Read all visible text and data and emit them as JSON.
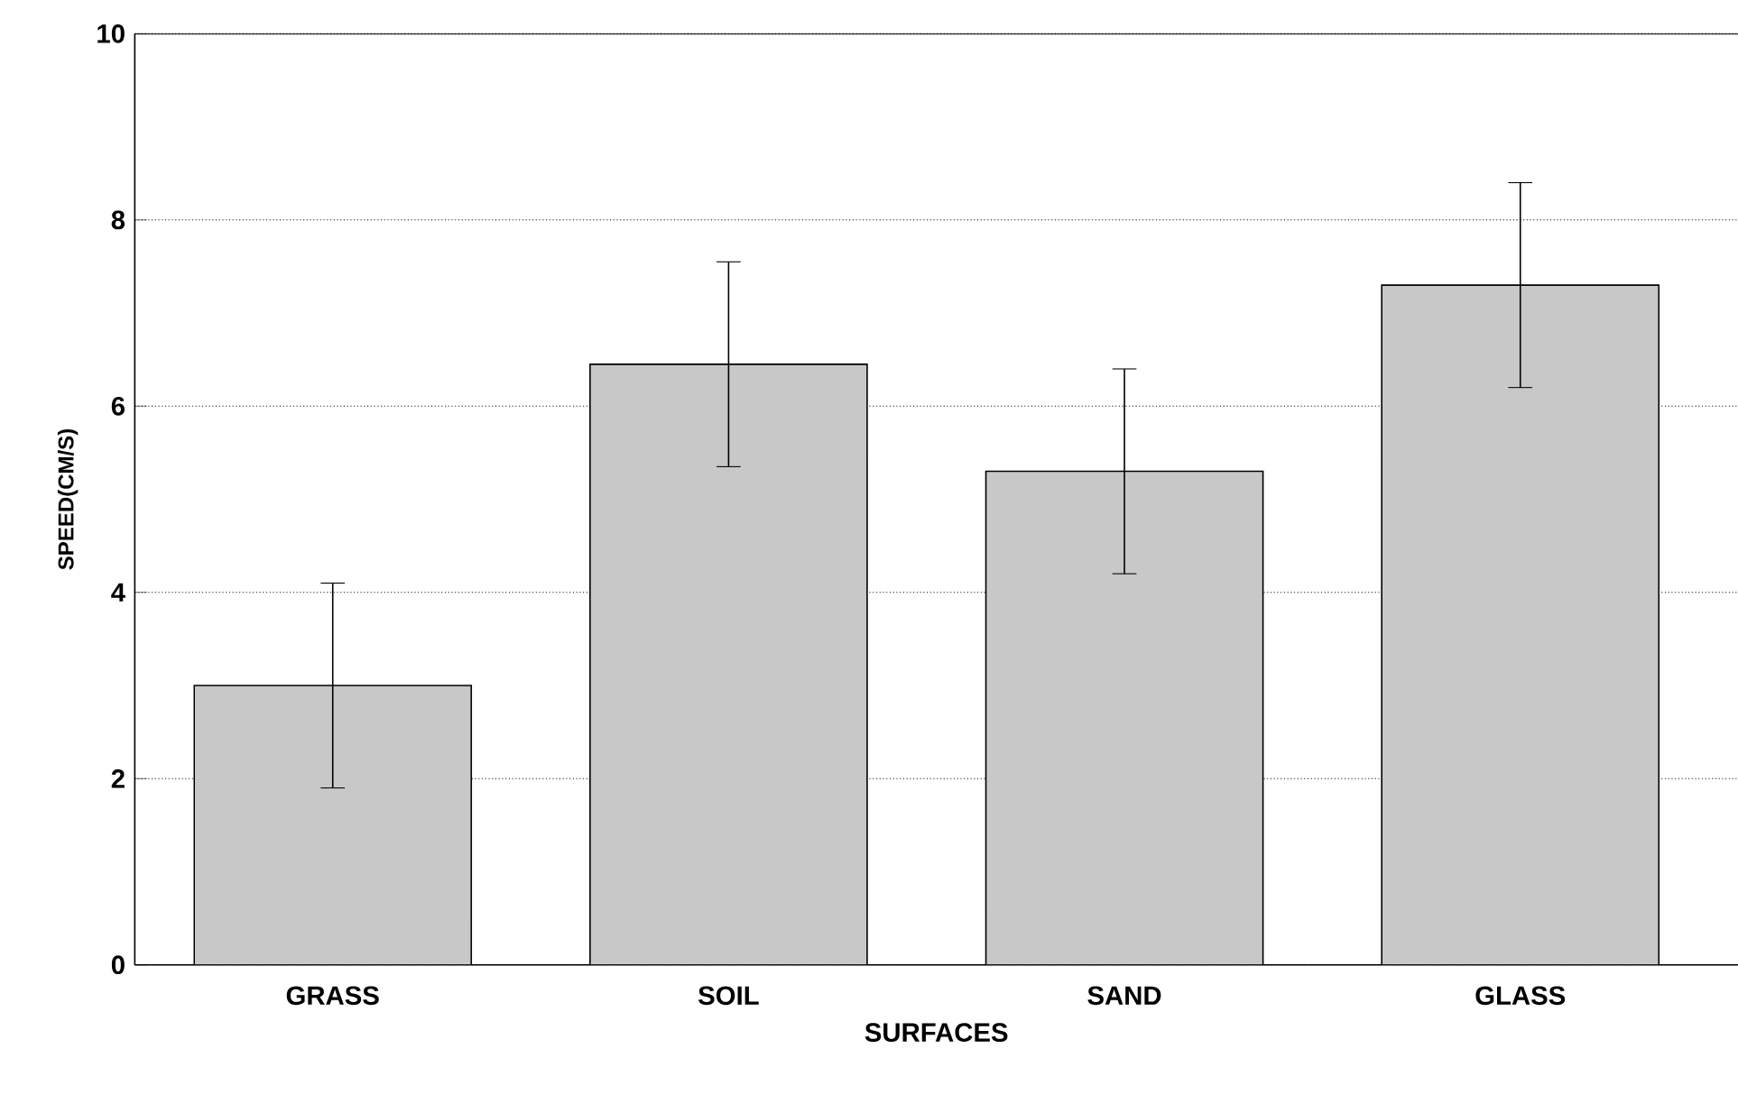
{
  "chart_data": {
    "type": "bar",
    "xlabel": "SURFACES",
    "ylabel": "SPEED(CM/S)",
    "categories": [
      "GRASS",
      "SOIL",
      "SAND",
      "GLASS"
    ],
    "values": [
      3.0,
      6.45,
      5.3,
      7.3
    ],
    "errors": [
      1.1,
      1.1,
      1.1,
      1.1
    ],
    "color": "#c8c8c8",
    "ylim": [
      0,
      10
    ],
    "yticks": [
      0,
      2,
      4,
      6,
      8,
      10
    ],
    "grid": "y"
  }
}
